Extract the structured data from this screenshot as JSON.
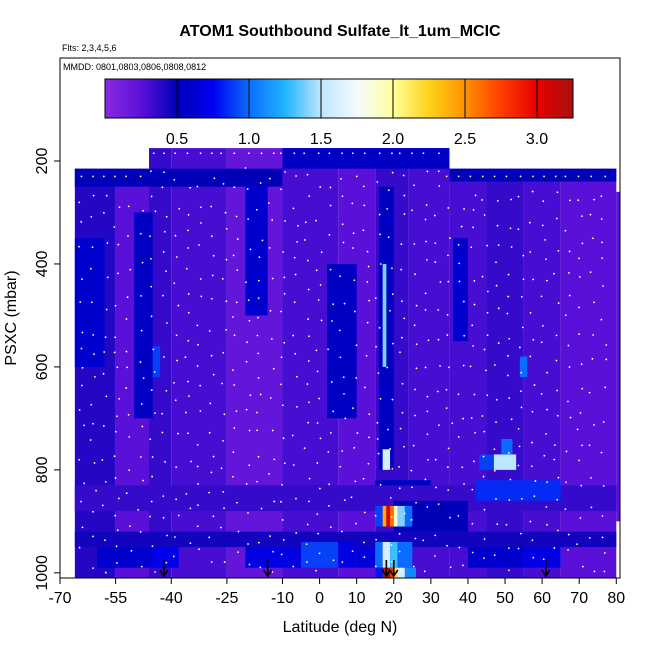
{
  "chart_data": {
    "type": "heatmap",
    "title": "ATOM1 Southbound Sulfate_lt_1um_MCIC",
    "subtitle_flights": "Flts: 2,3,4,5,6",
    "subtitle_dates": "MMDD: 0801,0803,0806,0808,0812",
    "xlabel": "Latitude (deg N)",
    "ylabel": "PSXC (mbar)",
    "xlim": [
      -70,
      81
    ],
    "ylim": [
      1010,
      0
    ],
    "x_ticks": [
      -70,
      -55,
      -40,
      -25,
      -10,
      0,
      10,
      20,
      30,
      40,
      50,
      60,
      70,
      80
    ],
    "y_ticks": [
      200,
      400,
      600,
      800,
      1000
    ],
    "colorbar": {
      "min": 0,
      "max": 3.25,
      "ticks": [
        0.5,
        1.0,
        1.5,
        2.0,
        2.5,
        3.0
      ],
      "tick_labels": [
        "0.5",
        "1.0",
        "1.5",
        "2.0",
        "2.5",
        "3.0"
      ],
      "colors": [
        "#8a2be2",
        "#5a10d8",
        "#0000b8",
        "#0000ee",
        "#0a6cff",
        "#1fb4ff",
        "#bfe6ff",
        "#f5fbff",
        "#ffff9c",
        "#ffd21a",
        "#ff9200",
        "#ff3c00",
        "#e60000",
        "#a81010"
      ]
    },
    "profile_markers_lat": [
      -42,
      -14,
      18,
      20,
      61
    ],
    "cells": [
      {
        "lat": [
          -66,
          -55
        ],
        "p": [
          215,
          1010
        ],
        "v": 0.4
      },
      {
        "lat": [
          -55,
          -45
        ],
        "p": [
          215,
          1010
        ],
        "v": 0.25
      },
      {
        "lat": [
          -46,
          -40
        ],
        "p": [
          175,
          1010
        ],
        "v": 0.35
      },
      {
        "lat": [
          -40,
          -25
        ],
        "p": [
          175,
          1010
        ],
        "v": 0.3
      },
      {
        "lat": [
          -25,
          -10
        ],
        "p": [
          175,
          1010
        ],
        "v": 0.2
      },
      {
        "lat": [
          -10,
          5
        ],
        "p": [
          175,
          1010
        ],
        "v": 0.3
      },
      {
        "lat": [
          5,
          15
        ],
        "p": [
          175,
          1010
        ],
        "v": 0.25
      },
      {
        "lat": [
          15,
          24
        ],
        "p": [
          175,
          1010
        ],
        "v": 0.35
      },
      {
        "lat": [
          24,
          35
        ],
        "p": [
          175,
          1010
        ],
        "v": 0.3
      },
      {
        "lat": [
          35,
          45
        ],
        "p": [
          215,
          1010
        ],
        "v": 0.3
      },
      {
        "lat": [
          45,
          55
        ],
        "p": [
          215,
          1010
        ],
        "v": 0.35
      },
      {
        "lat": [
          55,
          65
        ],
        "p": [
          215,
          1010
        ],
        "v": 0.3
      },
      {
        "lat": [
          65,
          80
        ],
        "p": [
          215,
          1010
        ],
        "v": 0.25
      },
      {
        "lat": [
          80,
          81
        ],
        "p": [
          260,
          900
        ],
        "v": 0.25
      },
      {
        "lat": [
          -66,
          -10
        ],
        "p": [
          215,
          250
        ],
        "v": 0.5
      },
      {
        "lat": [
          -10,
          35
        ],
        "p": [
          175,
          215
        ],
        "v": 0.55
      },
      {
        "lat": [
          35,
          80
        ],
        "p": [
          215,
          240
        ],
        "v": 0.5
      },
      {
        "lat": [
          -66,
          -58
        ],
        "p": [
          350,
          600
        ],
        "v": 0.6
      },
      {
        "lat": [
          -50,
          -45
        ],
        "p": [
          300,
          700
        ],
        "v": 0.55
      },
      {
        "lat": [
          -20,
          -14
        ],
        "p": [
          250,
          500
        ],
        "v": 0.6
      },
      {
        "lat": [
          2,
          10
        ],
        "p": [
          400,
          700
        ],
        "v": 0.55
      },
      {
        "lat": [
          16,
          20
        ],
        "p": [
          250,
          800
        ],
        "v": 0.55
      },
      {
        "lat": [
          17,
          18
        ],
        "p": [
          400,
          600
        ],
        "v": 1.4
      },
      {
        "lat": [
          36,
          40
        ],
        "p": [
          350,
          550
        ],
        "v": 0.6
      },
      {
        "lat": [
          -45,
          -43
        ],
        "p": [
          560,
          620
        ],
        "v": 0.9
      },
      {
        "lat": [
          54,
          56
        ],
        "p": [
          580,
          620
        ],
        "v": 1.0
      },
      {
        "lat": [
          17,
          19
        ],
        "p": [
          760,
          800
        ],
        "v": 1.6
      },
      {
        "lat": [
          43,
          47
        ],
        "p": [
          770,
          800
        ],
        "v": 0.9
      },
      {
        "lat": [
          47,
          53
        ],
        "p": [
          770,
          800
        ],
        "v": 1.5
      },
      {
        "lat": [
          49,
          52
        ],
        "p": [
          740,
          770
        ],
        "v": 1.0
      },
      {
        "lat": [
          15,
          30
        ],
        "p": [
          820,
          870
        ],
        "v": 0.55
      },
      {
        "lat": [
          -66,
          80
        ],
        "p": [
          830,
          880
        ],
        "v": 0.35
      },
      {
        "lat": [
          42,
          65
        ],
        "p": [
          820,
          860
        ],
        "v": 0.85
      },
      {
        "lat": [
          20,
          40
        ],
        "p": [
          860,
          920
        ],
        "v": 0.5
      },
      {
        "lat": [
          15,
          17
        ],
        "p": [
          870,
          910
        ],
        "v": 0.9
      },
      {
        "lat": [
          17,
          18
        ],
        "p": [
          870,
          910
        ],
        "v": 2.4
      },
      {
        "lat": [
          18,
          19
        ],
        "p": [
          870,
          910
        ],
        "v": 3.0
      },
      {
        "lat": [
          19,
          20
        ],
        "p": [
          870,
          910
        ],
        "v": 2.6
      },
      {
        "lat": [
          20,
          21
        ],
        "p": [
          870,
          910
        ],
        "v": 1.9
      },
      {
        "lat": [
          21,
          23
        ],
        "p": [
          870,
          910
        ],
        "v": 1.4
      },
      {
        "lat": [
          23,
          25
        ],
        "p": [
          870,
          910
        ],
        "v": 1.0
      },
      {
        "lat": [
          -66,
          80
        ],
        "p": [
          920,
          950
        ],
        "v": 0.45
      },
      {
        "lat": [
          -60,
          -45
        ],
        "p": [
          950,
          990
        ],
        "v": 0.6
      },
      {
        "lat": [
          -45,
          -38
        ],
        "p": [
          950,
          990
        ],
        "v": 0.75
      },
      {
        "lat": [
          -20,
          -5
        ],
        "p": [
          950,
          990
        ],
        "v": 0.7
      },
      {
        "lat": [
          -5,
          5
        ],
        "p": [
          940,
          990
        ],
        "v": 0.9
      },
      {
        "lat": [
          5,
          10
        ],
        "p": [
          940,
          990
        ],
        "v": 0.7
      },
      {
        "lat": [
          10,
          15
        ],
        "p": [
          950,
          990
        ],
        "v": 0.65
      },
      {
        "lat": [
          15,
          17
        ],
        "p": [
          940,
          990
        ],
        "v": 1.0
      },
      {
        "lat": [
          17,
          19
        ],
        "p": [
          940,
          990
        ],
        "v": 1.6
      },
      {
        "lat": [
          19,
          21
        ],
        "p": [
          940,
          990
        ],
        "v": 1.3
      },
      {
        "lat": [
          21,
          25
        ],
        "p": [
          940,
          990
        ],
        "v": 1.0
      },
      {
        "lat": [
          40,
          55
        ],
        "p": [
          950,
          990
        ],
        "v": 0.6
      },
      {
        "lat": [
          55,
          65
        ],
        "p": [
          950,
          990
        ],
        "v": 0.7
      },
      {
        "lat": [
          17,
          18
        ],
        "p": [
          990,
          1010
        ],
        "v": 3.1
      },
      {
        "lat": [
          18,
          19
        ],
        "p": [
          990,
          1010
        ],
        "v": 3.25
      },
      {
        "lat": [
          19,
          20
        ],
        "p": [
          990,
          1010
        ],
        "v": 2.8
      },
      {
        "lat": [
          20,
          21
        ],
        "p": [
          990,
          1010
        ],
        "v": 2.2
      },
      {
        "lat": [
          21,
          23
        ],
        "p": [
          990,
          1010
        ],
        "v": 1.6
      },
      {
        "lat": [
          23,
          26
        ],
        "p": [
          990,
          1010
        ],
        "v": 1.1
      },
      {
        "lat": [
          15,
          17
        ],
        "p": [
          990,
          1010
        ],
        "v": 0.8
      }
    ]
  }
}
